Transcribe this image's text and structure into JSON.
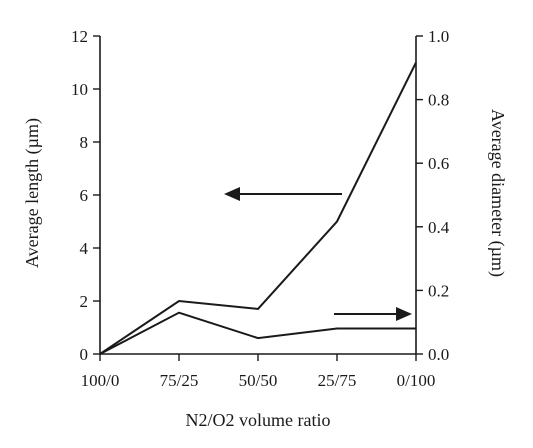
{
  "chart_data": {
    "type": "line",
    "categories": [
      "100/0",
      "75/25",
      "50/50",
      "25/75",
      "0/100"
    ],
    "xlabel": "N2/O2 volume ratio",
    "ylabel_left": "Average length (µm)",
    "ylabel_right": "Average diameter (µm)",
    "ylim_left": [
      0,
      12
    ],
    "yticks_left": [
      "0",
      "2",
      "4",
      "6",
      "8",
      "10",
      "12"
    ],
    "ylim_right": [
      0,
      1.0
    ],
    "yticks_right": [
      "0.0",
      "0.2",
      "0.4",
      "0.6",
      "0.8",
      "1.0"
    ],
    "grid": false,
    "series": [
      {
        "axis": "left",
        "values": [
          0,
          2.0,
          1.7,
          5.0,
          11.0
        ]
      },
      {
        "axis": "right",
        "values": [
          0,
          0.13,
          0.05,
          0.08,
          0.08
        ]
      }
    ],
    "annotations": [
      {
        "type": "arrow",
        "direction": "left",
        "series_index": 0
      },
      {
        "type": "arrow",
        "direction": "right",
        "series_index": 1
      }
    ]
  }
}
